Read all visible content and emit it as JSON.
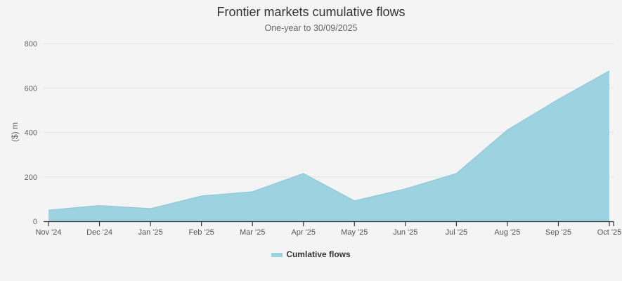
{
  "header": {
    "title": "Frontier markets cumulative flows",
    "subtitle": "One-year to 30/09/2025"
  },
  "legend": {
    "items": [
      {
        "label": "Cumlative flows",
        "color": "#9dd2e1"
      }
    ]
  },
  "chart_data": {
    "type": "area",
    "title": "Frontier markets cumulative flows",
    "subtitle": "One-year to 30/09/2025",
    "xlabel": "",
    "ylabel": "($) m",
    "ylim": [
      0,
      800
    ],
    "yticks": [
      0,
      200,
      400,
      600,
      800
    ],
    "grid": true,
    "legend_position": "bottom",
    "categories": [
      "Nov '24",
      "Dec '24",
      "Jan '25",
      "Feb '25",
      "Mar '25",
      "Apr '25",
      "May '25",
      "Jun '25",
      "Jul '25",
      "Aug '25",
      "Sep '25",
      "Oct '25"
    ],
    "series": [
      {
        "name": "Cumlative flows",
        "color": "#9dd2e1",
        "values": [
          50,
          71,
          57,
          114,
          133,
          215,
          92,
          146,
          215,
          411,
          549,
          677
        ]
      }
    ]
  }
}
